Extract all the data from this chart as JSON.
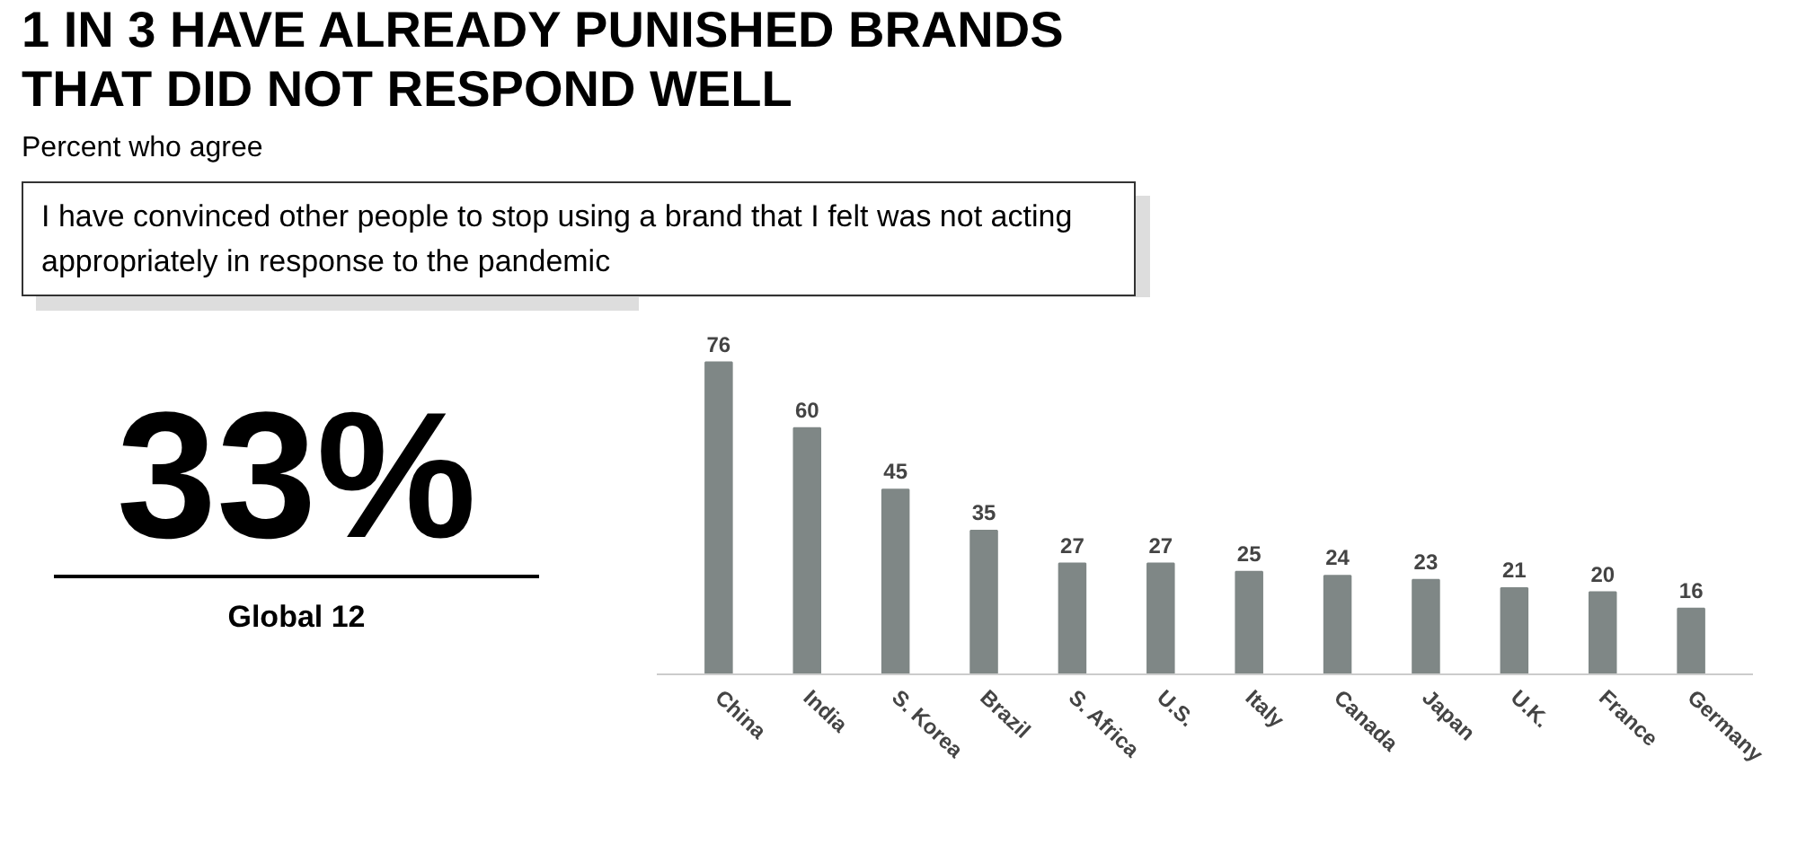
{
  "chart_data": {
    "type": "bar",
    "title": "1 IN 3 HAVE ALREADY PUNISHED BRANDS THAT DID NOT RESPOND WELL",
    "subtitle": "Percent who agree",
    "annotations": [
      "I have convinced other people to stop using a brand that I felt was not acting appropriately in response to the pandemic",
      "33%",
      "Global 12"
    ],
    "categories": [
      "China",
      "India",
      "S. Korea",
      "Brazil",
      "S. Africa",
      "U.S.",
      "Italy",
      "Canada",
      "Japan",
      "U.K.",
      "France",
      "Germany"
    ],
    "values": [
      76,
      60,
      45,
      35,
      27,
      27,
      25,
      24,
      23,
      21,
      20,
      16
    ],
    "color": "#7f8786",
    "data_labels": true,
    "grid": false
  }
}
